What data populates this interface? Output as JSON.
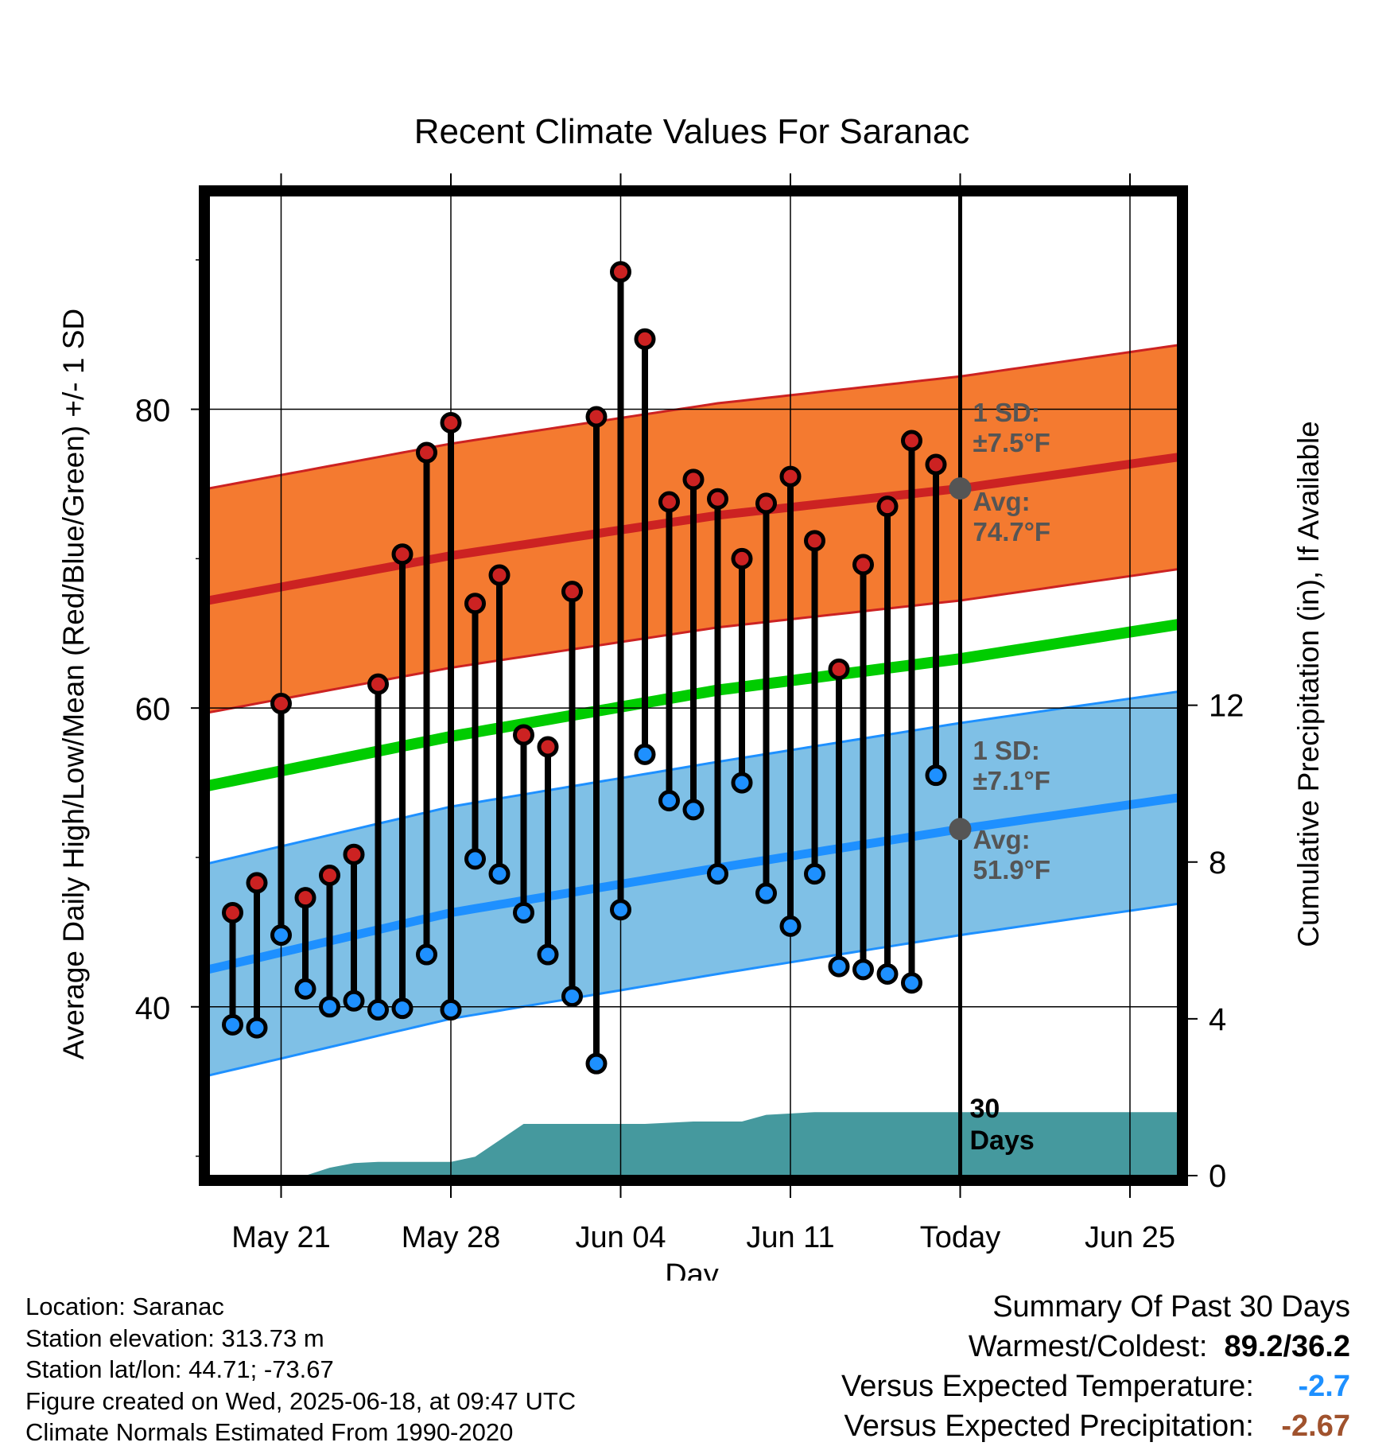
{
  "chart_data": {
    "type": "line",
    "title": "Recent Climate Values For Saranac",
    "xlabel": "Day",
    "ylabel": "Average Daily High/Low/Mean (Red/Blue/Green) +/- 1 SD",
    "y2label": "Cumulative Precipitation (in), If Available",
    "x_tick_labels": [
      "May 21",
      "May 28",
      "Jun 04",
      "Jun 11",
      "Today",
      "Jun 25"
    ],
    "x_tick_dates": [
      "2025-05-21",
      "2025-05-28",
      "2025-06-04",
      "2025-06-11",
      "2025-06-18",
      "2025-06-25"
    ],
    "xlim": [
      "2025-05-18",
      "2025-06-27"
    ],
    "y_ticks": [
      40,
      60,
      80
    ],
    "ylim": [
      28.7,
      94.3
    ],
    "y2_ticks": [
      0,
      4,
      8,
      12
    ],
    "y2lim": [
      0,
      25
    ],
    "grid": true,
    "today": "2025-06-18",
    "today_label": "Today",
    "period_label": "30 Days",
    "normals": {
      "dates": [
        "2025-05-18",
        "2025-05-28",
        "2025-06-08",
        "2025-06-18",
        "2025-06-27"
      ],
      "high_mean": [
        67.2,
        70.2,
        72.9,
        74.7,
        76.8
      ],
      "high_sd": 7.5,
      "low_mean": [
        42.5,
        46.3,
        49.3,
        51.9,
        54.0
      ],
      "low_sd": 7.1,
      "mean": [
        54.8,
        58.1,
        61.2,
        63.3,
        65.6
      ]
    },
    "annotations": {
      "high": {
        "sd_label": "1 SD:",
        "sd_value": "±7.5°F",
        "avg_label": "Avg:",
        "avg_value": "74.7°F"
      },
      "low": {
        "sd_label": "1 SD:",
        "sd_value": "±7.1°F",
        "avg_label": "Avg:",
        "avg_value": "51.9°F"
      }
    },
    "series": [
      {
        "name": "Daily High",
        "color": "#cc2222",
        "dates": [
          "2025-05-19",
          "2025-05-20",
          "2025-05-21",
          "2025-05-22",
          "2025-05-23",
          "2025-05-24",
          "2025-05-25",
          "2025-05-26",
          "2025-05-27",
          "2025-05-28",
          "2025-05-29",
          "2025-05-30",
          "2025-05-31",
          "2025-06-01",
          "2025-06-02",
          "2025-06-03",
          "2025-06-04",
          "2025-06-05",
          "2025-06-06",
          "2025-06-07",
          "2025-06-08",
          "2025-06-09",
          "2025-06-10",
          "2025-06-11",
          "2025-06-12",
          "2025-06-13",
          "2025-06-14",
          "2025-06-15",
          "2025-06-16",
          "2025-06-17"
        ],
        "values": [
          46.3,
          48.3,
          60.3,
          47.3,
          48.8,
          50.2,
          61.6,
          70.3,
          77.1,
          79.1,
          67.0,
          68.9,
          58.2,
          57.4,
          67.8,
          79.5,
          89.2,
          84.7,
          73.8,
          75.3,
          74.0,
          70.0,
          73.7,
          75.5,
          71.2,
          62.6,
          69.6,
          73.5,
          77.9,
          76.3
        ]
      },
      {
        "name": "Daily Low",
        "color": "#1e90ff",
        "dates": [
          "2025-05-19",
          "2025-05-20",
          "2025-05-21",
          "2025-05-22",
          "2025-05-23",
          "2025-05-24",
          "2025-05-25",
          "2025-05-26",
          "2025-05-27",
          "2025-05-28",
          "2025-05-29",
          "2025-05-30",
          "2025-05-31",
          "2025-06-01",
          "2025-06-02",
          "2025-06-03",
          "2025-06-04",
          "2025-06-05",
          "2025-06-06",
          "2025-06-07",
          "2025-06-08",
          "2025-06-09",
          "2025-06-10",
          "2025-06-11",
          "2025-06-12",
          "2025-06-13",
          "2025-06-14",
          "2025-06-15",
          "2025-06-16",
          "2025-06-17"
        ],
        "values": [
          38.8,
          38.6,
          44.8,
          41.2,
          40.0,
          40.4,
          39.8,
          39.9,
          43.5,
          39.8,
          49.9,
          48.9,
          46.3,
          43.5,
          40.7,
          36.2,
          46.5,
          56.9,
          53.8,
          53.2,
          48.9,
          55.0,
          47.6,
          45.4,
          48.9,
          42.7,
          42.5,
          42.2,
          41.6,
          55.5
        ]
      },
      {
        "name": "Cumulative Precipitation",
        "color": "#45999e",
        "dates": [
          "2025-05-18",
          "2025-05-22",
          "2025-05-23",
          "2025-05-24",
          "2025-05-25",
          "2025-05-28",
          "2025-05-29",
          "2025-05-31",
          "2025-06-05",
          "2025-06-07",
          "2025-06-09",
          "2025-06-10",
          "2025-06-12",
          "2025-06-27"
        ],
        "values": [
          0,
          0,
          0.2,
          0.32,
          0.35,
          0.35,
          0.48,
          1.32,
          1.32,
          1.38,
          1.38,
          1.55,
          1.62,
          1.62
        ]
      }
    ]
  },
  "footer": {
    "location": "Location: Saranac",
    "elevation": "Station elevation: 313.73 m",
    "latlon": "Station lat/lon: 44.71; -73.67",
    "created": "Figure created on Wed, 2025-06-18, at 09:47 UTC",
    "normals": "Climate Normals Estimated From 1990-2020"
  },
  "summary": {
    "heading": "Summary Of Past 30 Days",
    "warmest_label": "Warmest/Coldest:",
    "warmest_value": "89.2/36.2",
    "temp_label": "Versus Expected Temperature:",
    "temp_value": "-2.7",
    "temp_color": "#1e90ff",
    "precip_label": "Versus Expected Precipitation:",
    "precip_value": "-2.67",
    "precip_color": "#a0522d"
  },
  "colors": {
    "high_band": "#f47a30",
    "high_line": "#cc2222",
    "low_band": "#7fc0e6",
    "low_line": "#1e90ff",
    "mean_line": "#00cc00",
    "precip": "#45999e",
    "annotation_text": "#555555"
  }
}
